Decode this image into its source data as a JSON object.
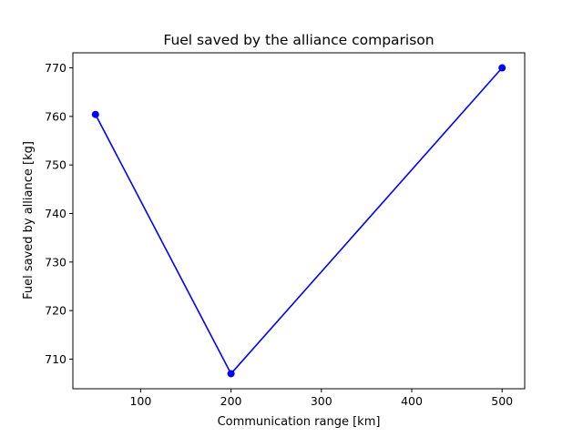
{
  "chart_data": {
    "type": "line",
    "title": "Fuel saved by the alliance comparison",
    "xlabel": "Communication range [km]",
    "ylabel": "Fuel saved by alliance [kg]",
    "xlim": [
      25,
      525
    ],
    "ylim": [
      703.9,
      773.1
    ],
    "x_ticks": [
      100,
      200,
      300,
      400,
      500
    ],
    "y_ticks": [
      710,
      720,
      730,
      740,
      750,
      760,
      770
    ],
    "grid": false,
    "series": [
      {
        "color": "#0000ff",
        "marker": "circle",
        "points": [
          {
            "x": 50,
            "y": 760.4
          },
          {
            "x": 200,
            "y": 707.0
          },
          {
            "x": 500,
            "y": 770.0
          }
        ]
      }
    ]
  }
}
